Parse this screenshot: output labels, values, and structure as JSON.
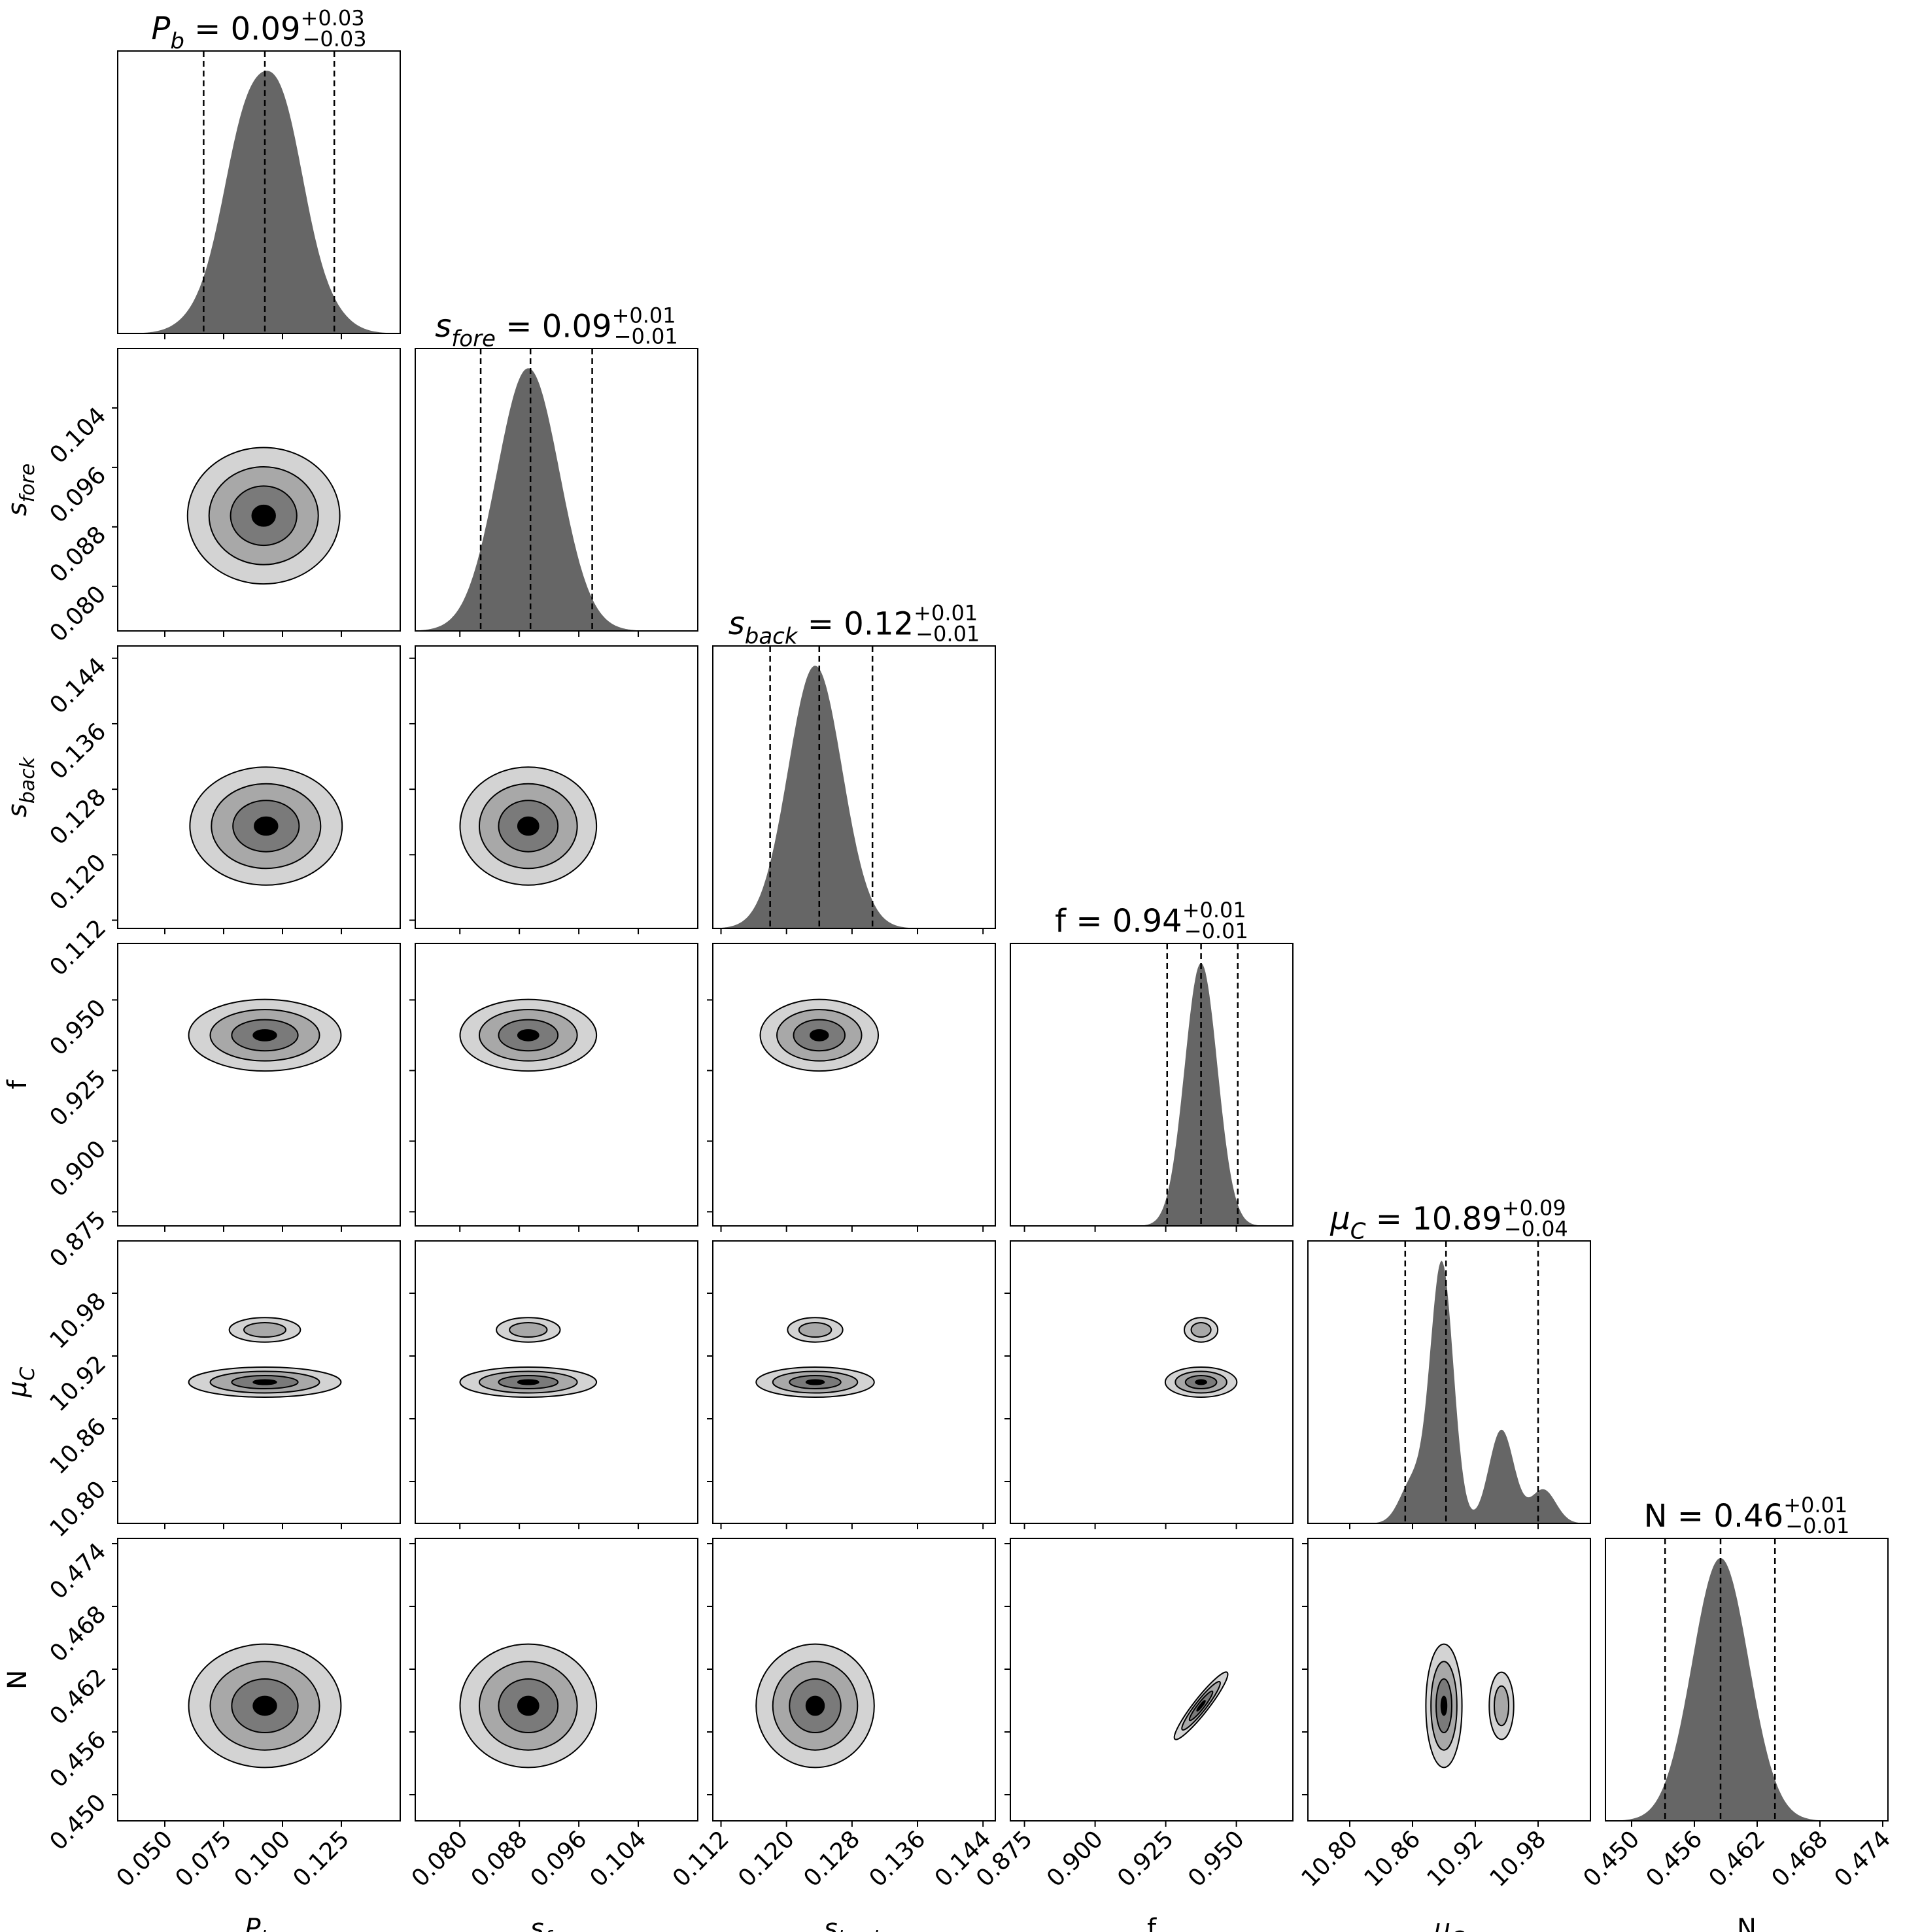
{
  "chart_data": {
    "type": "corner",
    "colors": {
      "hist_fill": "#666666",
      "frame": "#000000",
      "contour_levels": [
        "#d3d3d3",
        "#a8a8a8",
        "#7a7a7a",
        "#000000"
      ]
    },
    "params": [
      {
        "id": "Pb",
        "label_base": "P",
        "label_sub": "b",
        "italic": true,
        "title_value": "0.09",
        "err_plus": "+0.03",
        "err_minus": "−0.03",
        "range": [
          0.03,
          0.15
        ],
        "ticks": [
          0.05,
          0.075,
          0.1,
          0.125
        ],
        "tick_labels": [
          "0.050",
          "0.075",
          "0.100",
          "0.125"
        ],
        "quantiles": [
          0.0665,
          0.0925,
          0.122
        ],
        "mode": 0.0925,
        "sigma": 0.0148
      },
      {
        "id": "sfore",
        "label_base": "s",
        "label_sub": "fore",
        "italic": true,
        "title_value": "0.09",
        "err_plus": "+0.01",
        "err_minus": "−0.01",
        "range": [
          0.074,
          0.112
        ],
        "ticks": [
          0.08,
          0.088,
          0.096,
          0.104
        ],
        "tick_labels": [
          "0.080",
          "0.088",
          "0.096",
          "0.104"
        ],
        "quantiles": [
          0.0828,
          0.0895,
          0.0978
        ],
        "mode": 0.0892,
        "sigma": 0.0042
      },
      {
        "id": "sback",
        "label_base": "s",
        "label_sub": "back",
        "italic": true,
        "title_value": "0.12",
        "err_plus": "+0.01",
        "err_minus": "−0.01",
        "range": [
          0.111,
          0.1455
        ],
        "ticks": [
          0.112,
          0.12,
          0.128,
          0.136,
          0.144
        ],
        "tick_labels": [
          "0.112",
          "0.120",
          "0.128",
          "0.136",
          "0.144"
        ],
        "quantiles": [
          0.118,
          0.124,
          0.1305
        ],
        "mode": 0.1235,
        "sigma": 0.0033
      },
      {
        "id": "f",
        "label_base": "f",
        "label_sub": "",
        "italic": false,
        "title_value": "0.94",
        "err_plus": "+0.01",
        "err_minus": "−0.01",
        "range": [
          0.87,
          0.97
        ],
        "ticks": [
          0.875,
          0.9,
          0.925,
          0.95
        ],
        "tick_labels": [
          "0.875",
          "0.900",
          "0.925",
          "0.950"
        ],
        "quantiles": [
          0.9255,
          0.9375,
          0.9505
        ],
        "mode": 0.9375,
        "sigma": 0.0058
      },
      {
        "id": "muC",
        "label_base": "μ",
        "label_sub": "C",
        "italic": true,
        "title_value": "10.89",
        "err_plus": "+0.09",
        "err_minus": "−0.04",
        "range": [
          10.76,
          11.03
        ],
        "ticks": [
          10.8,
          10.86,
          10.92,
          10.98
        ],
        "tick_labels": [
          "10.80",
          "10.86",
          "10.92",
          "10.98"
        ],
        "quantiles": [
          10.853,
          10.892,
          10.98
        ],
        "mode": 10.888,
        "sigma": 0.02
      },
      {
        "id": "N",
        "label_base": "N",
        "label_sub": "",
        "italic": false,
        "title_value": "0.46",
        "err_plus": "+0.01",
        "err_minus": "−0.01",
        "range": [
          0.4475,
          0.4745
        ],
        "ticks": [
          0.45,
          0.456,
          0.462,
          0.468,
          0.474
        ],
        "tick_labels": [
          "0.450",
          "0.456",
          "0.462",
          "0.468",
          "0.474"
        ],
        "quantiles": [
          0.4532,
          0.4585,
          0.4637
        ],
        "mode": 0.4585,
        "sigma": 0.0027
      }
    ],
    "title_format": "{label} = {value}",
    "xlabel": [
      "P_b",
      "s_fore",
      "s_back",
      "f",
      "μ_C",
      "N"
    ],
    "ylabel": [
      "s_fore",
      "s_back",
      "f",
      "μ_C",
      "N"
    ],
    "contour_centers": {
      "1,0": [
        0.092,
        0.0895
      ],
      "2,0": [
        0.093,
        0.1235
      ],
      "2,1": [
        0.0892,
        0.1235
      ],
      "3,0": [
        0.0925,
        0.9375
      ],
      "3,1": [
        0.0892,
        0.9375
      ],
      "3,2": [
        0.124,
        0.9375
      ],
      "4,0": [
        0.0925,
        10.895
      ],
      "4,1": [
        0.0892,
        10.895
      ],
      "4,2": [
        0.1235,
        10.895
      ],
      "4,3": [
        0.9375,
        10.895
      ],
      "5,0": [
        0.0925,
        0.4585
      ],
      "5,1": [
        0.0892,
        0.4585
      ],
      "5,2": [
        0.1235,
        0.4585
      ],
      "5,3": [
        0.9375,
        0.4585
      ],
      "5,4": [
        10.89,
        0.4585
      ]
    },
    "grid": false,
    "legend": "none"
  }
}
